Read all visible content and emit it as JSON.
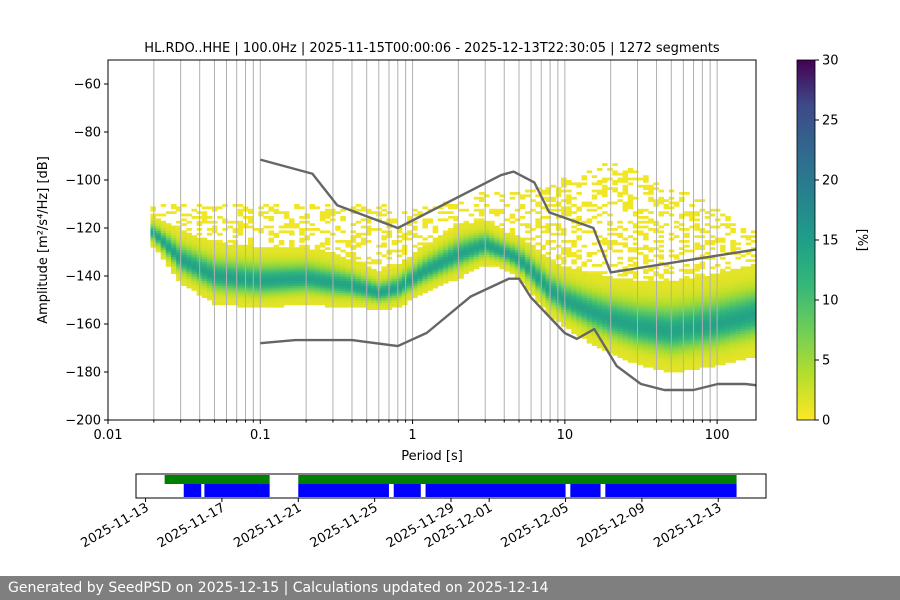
{
  "chart_data": [
    {
      "type": "heatmap",
      "title": "HL.RDO..HHE | 100.0Hz | 2025-11-15T00:00:06 - 2025-12-13T22:30:05 | 1272 segments",
      "xlabel": "Period [s]",
      "ylabel": "Amplitude [m²/s⁴/Hz] [dB]",
      "xscale": "log",
      "xlim": [
        0.01,
        180
      ],
      "ylim": [
        -200,
        -50
      ],
      "x_tick_values": [
        0.01,
        0.1,
        1,
        10,
        100
      ],
      "x_tick_labels": [
        "0.01",
        "0.1",
        "1",
        "10",
        "100"
      ],
      "y_tick_values": [
        -60,
        -80,
        -100,
        -120,
        -140,
        -160,
        -180,
        -200
      ],
      "y_tick_labels": [
        "−60",
        "−80",
        "−100",
        "−120",
        "−140",
        "−160",
        "−180",
        "−200"
      ],
      "grid": "vertical",
      "colorbar": {
        "label": "[%]",
        "range": [
          0,
          30
        ],
        "tick_values": [
          0,
          5,
          10,
          15,
          20,
          25,
          30
        ],
        "tick_labels": [
          "0",
          "5",
          "10",
          "15",
          "20",
          "25",
          "30"
        ],
        "colormap": "viridis"
      },
      "pdf_mode": [
        [
          0.02,
          -122
        ],
        [
          0.03,
          -133
        ],
        [
          0.05,
          -140
        ],
        [
          0.1,
          -142
        ],
        [
          0.2,
          -141
        ],
        [
          0.4,
          -144
        ],
        [
          0.6,
          -147
        ],
        [
          0.8,
          -145
        ],
        [
          1.2,
          -138
        ],
        [
          2,
          -131
        ],
        [
          3,
          -127
        ],
        [
          4,
          -130
        ],
        [
          5,
          -133
        ],
        [
          6,
          -138
        ],
        [
          8,
          -146
        ],
        [
          10,
          -150
        ],
        [
          15,
          -155
        ],
        [
          20,
          -158
        ],
        [
          30,
          -161
        ],
        [
          50,
          -163
        ],
        [
          100,
          -160
        ],
        [
          180,
          -156
        ]
      ],
      "pdf_spread_db": [
        [
          0.02,
          8
        ],
        [
          0.03,
          14
        ],
        [
          0.05,
          16
        ],
        [
          0.1,
          16
        ],
        [
          0.3,
          14
        ],
        [
          0.6,
          10
        ],
        [
          1,
          12
        ],
        [
          2,
          14
        ],
        [
          4,
          10
        ],
        [
          7,
          14
        ],
        [
          10,
          16
        ],
        [
          20,
          20
        ],
        [
          50,
          24
        ],
        [
          100,
          24
        ],
        [
          180,
          24
        ]
      ],
      "pdf_upper_outliers": [
        [
          0.05,
          -110
        ],
        [
          0.15,
          -110
        ],
        [
          0.3,
          -110
        ],
        [
          0.6,
          -110
        ],
        [
          1,
          -112
        ],
        [
          2,
          -108
        ],
        [
          3,
          -105
        ],
        [
          5,
          -105
        ],
        [
          8,
          -101
        ],
        [
          12,
          -98
        ],
        [
          20,
          -92
        ],
        [
          30,
          -96
        ],
        [
          50,
          -103
        ],
        [
          80,
          -108
        ],
        [
          150,
          -120
        ]
      ],
      "reference_curves": [
        {
          "name": "NHNM",
          "points": [
            [
              0.1,
              -91.5
            ],
            [
              0.22,
              -97.4
            ],
            [
              0.32,
              -110.5
            ],
            [
              0.8,
              -120
            ],
            [
              3.8,
              -98
            ],
            [
              4.6,
              -96.5
            ],
            [
              6.3,
              -101
            ],
            [
              7.9,
              -113.5
            ],
            [
              15.4,
              -120
            ],
            [
              20,
              -138.5
            ],
            [
              354.8,
              -126
            ]
          ]
        },
        {
          "name": "NLNM",
          "points": [
            [
              0.1,
              -168
            ],
            [
              0.17,
              -166.7
            ],
            [
              0.4,
              -166.7
            ],
            [
              0.8,
              -169.2
            ],
            [
              1.24,
              -163.7
            ],
            [
              2.4,
              -148.6
            ],
            [
              4.3,
              -141.1
            ],
            [
              5,
              -141.1
            ],
            [
              6,
              -149
            ],
            [
              10,
              -163.8
            ],
            [
              12,
              -166.2
            ],
            [
              15.6,
              -162.1
            ],
            [
              21.9,
              -177.5
            ],
            [
              31.6,
              -185
            ],
            [
              45,
              -187.5
            ],
            [
              70,
              -187.5
            ],
            [
              101,
              -185
            ],
            [
              154,
              -185
            ],
            [
              328,
              -187.5
            ]
          ]
        }
      ],
      "colors": {
        "curve": "#666666",
        "grid": "#b0b0b0"
      }
    },
    {
      "type": "timeline",
      "x_tick_labels": [
        "2025-11-13",
        "2025-11-17",
        "2025-11-21",
        "2025-11-25",
        "2025-11-29",
        "2025-12-01",
        "2025-12-05",
        "2025-12-09",
        "2025-12-13"
      ],
      "x_tick_dates": [
        "2025-11-13",
        "2025-11-17",
        "2025-11-21",
        "2025-11-25",
        "2025-11-29",
        "2025-12-01",
        "2025-12-05",
        "2025-12-09",
        "2025-12-13"
      ],
      "xlim": [
        "2025-11-12T12:00",
        "2025-12-15T12:00"
      ],
      "data_available": [
        [
          "2025-11-14T00:00",
          "2025-11-19T12:00"
        ],
        [
          "2025-11-21T00:00",
          "2025-12-13T23:00"
        ]
      ],
      "psd_used": [
        [
          "2025-11-15T00:00",
          "2025-11-15T22:00"
        ],
        [
          "2025-11-16T02:00",
          "2025-11-19T12:00"
        ],
        [
          "2025-11-21T00:00",
          "2025-11-25T18:00"
        ],
        [
          "2025-11-26T00:00",
          "2025-11-27T10:00"
        ],
        [
          "2025-11-27T16:00",
          "2025-12-05T00:00"
        ],
        [
          "2025-12-05T06:00",
          "2025-12-06T20:00"
        ],
        [
          "2025-12-07T02:00",
          "2025-12-13T23:00"
        ]
      ],
      "colors": {
        "available": "#008000",
        "psd": "#0000ff"
      }
    }
  ],
  "footer": {
    "text": "Generated by SeedPSD on 2025-12-15 | Calculations updated on 2025-12-14"
  }
}
